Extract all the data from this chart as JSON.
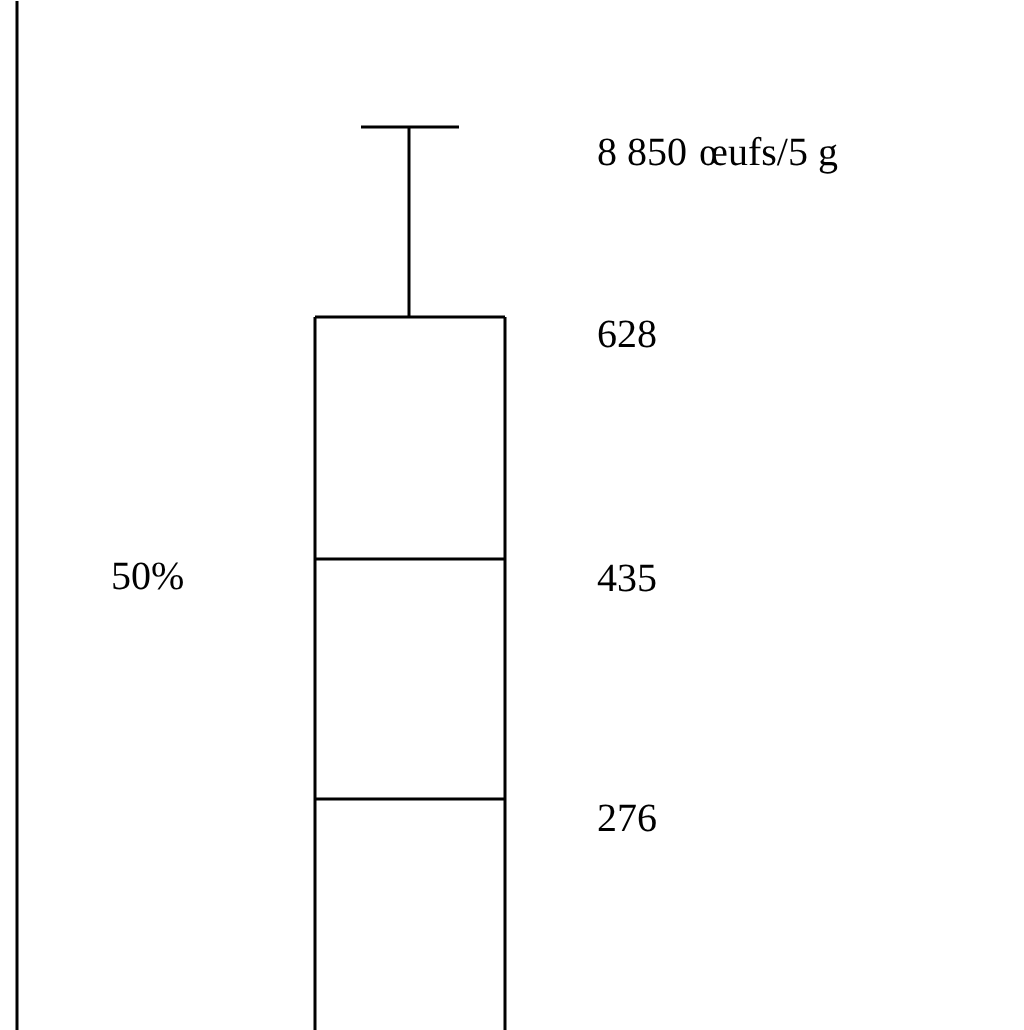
{
  "chart_data": {
    "type": "other",
    "values": [
      8850,
      628,
      435,
      276
    ],
    "data_labels": true,
    "annotations": [
      "œufs/5 g",
      "50%"
    ]
  }
}
